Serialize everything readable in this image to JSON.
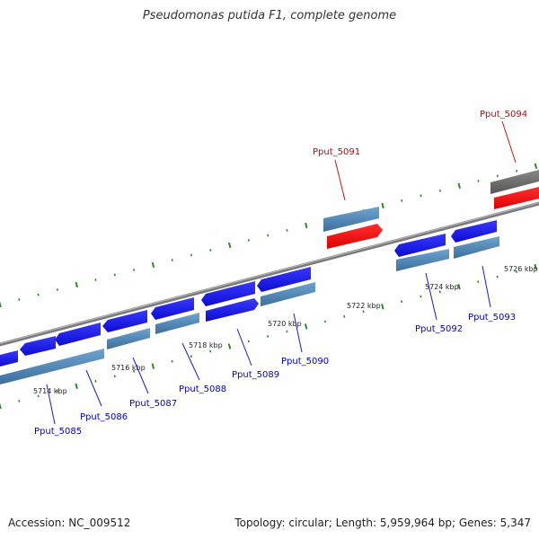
{
  "title": "Pseudomonas putida F1, complete genome",
  "footer": {
    "accession": "Accession: NC_009512",
    "summary": "Topology: circular; Length: 5,959,964 bp; Genes: 5,347"
  },
  "colors": {
    "gene_blue": "#1a1aee",
    "gene_red": "#ee1111",
    "cds_steel": "#4682b4",
    "backbone": "#808080",
    "tick_green": "#2a8a2a",
    "label_blue": "#0000cc",
    "label_red": "#cc0000"
  },
  "track": {
    "ticks": [
      {
        "label": "5714 kbp"
      },
      {
        "label": "5716 kbp"
      },
      {
        "label": "5718 kbp"
      },
      {
        "label": "5720 kbp"
      },
      {
        "label": "5722 kbp"
      },
      {
        "label": "5724 kbp"
      },
      {
        "label": "5726 kbp"
      }
    ]
  },
  "genes": [
    {
      "name": "Pput_5085",
      "strand": "reverse",
      "highlight": false
    },
    {
      "name": "Pput_5086",
      "strand": "reverse",
      "highlight": false
    },
    {
      "name": "Pput_5087",
      "strand": "reverse",
      "highlight": false
    },
    {
      "name": "Pput_5088",
      "strand": "forward",
      "highlight": false
    },
    {
      "name": "Pput_5089",
      "strand": "reverse",
      "highlight": false
    },
    {
      "name": "Pput_5090",
      "strand": "forward",
      "highlight": false
    },
    {
      "name": "Pput_5091",
      "strand": "forward",
      "highlight": true
    },
    {
      "name": "Pput_5092",
      "strand": "reverse",
      "highlight": false
    },
    {
      "name": "Pput_5093",
      "strand": "reverse",
      "highlight": false
    },
    {
      "name": "Pput_5094",
      "strand": "forward",
      "highlight": true
    }
  ]
}
